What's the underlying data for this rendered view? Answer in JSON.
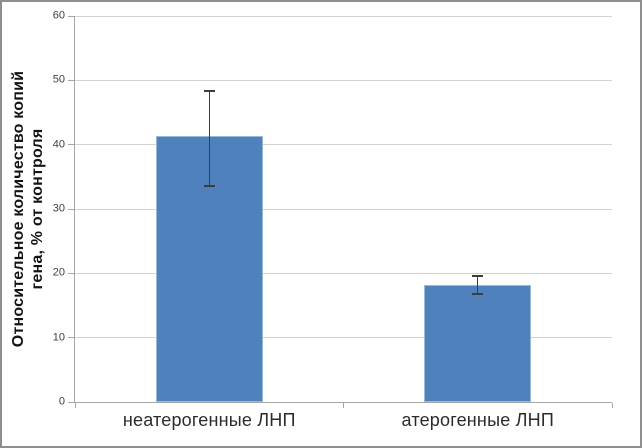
{
  "chart_data": {
    "type": "bar",
    "title": "",
    "xlabel": "",
    "ylabel": "Относительное количество копий гена, % от контроля",
    "ylabel_lines": [
      "Относительное количество копий",
      "гена, % от контроля"
    ],
    "categories": [
      "неатерогенные ЛНП",
      "атерогенные ЛНП"
    ],
    "values": [
      41.3,
      18.2
    ],
    "error_bars": {
      "high": [
        48.4,
        19.6
      ],
      "low": [
        33.5,
        16.8
      ]
    },
    "ylim": [
      0,
      60
    ],
    "yticks": [
      0,
      10,
      20,
      30,
      40,
      50,
      60
    ],
    "grid": true,
    "legend_position": "none",
    "bar_color": "#4F81BD",
    "bar_border_color": "#9db7da",
    "gridline_color": "#d2d2d2",
    "axis_color": "#a6a6a6",
    "error_bar_color": "#3d3d3d",
    "tick_label_color": "#3f3f3f",
    "category_label_color": "#2b2b2b"
  }
}
